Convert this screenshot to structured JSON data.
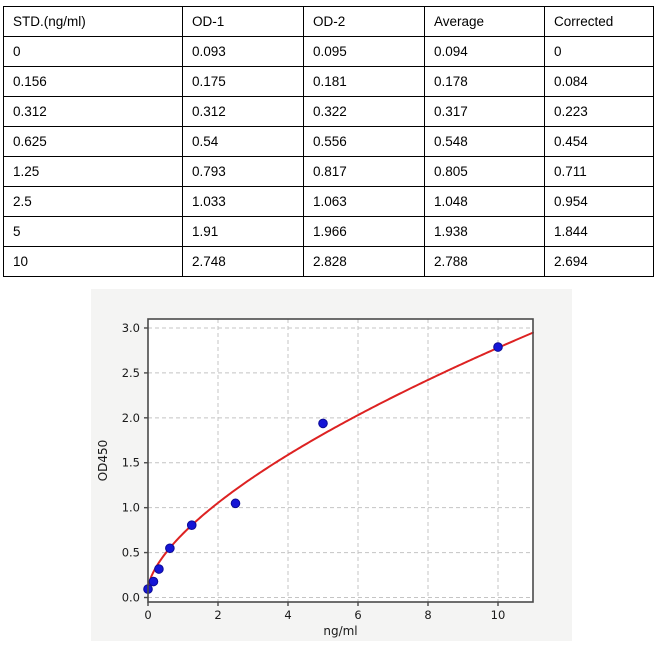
{
  "table": {
    "headers": [
      "STD.(ng/ml)",
      "OD-1",
      "OD-2",
      "Average",
      "Corrected"
    ],
    "rows": [
      [
        "0",
        "0.093",
        "0.095",
        "0.094",
        "0"
      ],
      [
        "0.156",
        "0.175",
        "0.181",
        "0.178",
        "0.084"
      ],
      [
        "0.312",
        "0.312",
        "0.322",
        "0.317",
        "0.223"
      ],
      [
        "0.625",
        "0.54",
        "0.556",
        "0.548",
        "0.454"
      ],
      [
        "1.25",
        "0.793",
        "0.817",
        "0.805",
        "0.711"
      ],
      [
        "2.5",
        "1.033",
        "1.063",
        "1.048",
        "0.954"
      ],
      [
        "5",
        "1.91",
        "1.966",
        "1.938",
        "1.844"
      ],
      [
        "10",
        "2.748",
        "2.828",
        "2.788",
        "2.694"
      ]
    ]
  },
  "chart_data": {
    "type": "scatter",
    "title": "",
    "xlabel": "ng/ml",
    "ylabel": "OD450",
    "xlim": [
      0,
      11
    ],
    "ylim": [
      -0.05,
      3.1
    ],
    "x_ticks": [
      0,
      2,
      4,
      6,
      8,
      10
    ],
    "x_tick_labels": [
      "0",
      "2",
      "4",
      "6",
      "8",
      "10"
    ],
    "y_ticks": [
      0,
      0.5,
      1,
      1.5,
      2,
      2.5,
      3
    ],
    "y_tick_labels": [
      "0.0",
      "0.5",
      "1.0",
      "1.5",
      "2.0",
      "2.5",
      "3.0"
    ],
    "grid": true,
    "legend": "none",
    "points_x": [
      0,
      0.156,
      0.312,
      0.625,
      1.25,
      2.5,
      5,
      10
    ],
    "points_y": [
      0.094,
      0.178,
      0.317,
      0.548,
      0.805,
      1.048,
      1.938,
      2.788
    ],
    "fit_curve": {
      "model": "power",
      "a": 0.611,
      "b": 0.642,
      "c": 0.1,
      "x_start": 0,
      "x_end": 11
    },
    "colors": {
      "point_fill": "#1515d6",
      "point_edge": "#0a0a96",
      "curve": "#dd2222",
      "grid": "#c4c4c4",
      "spine": "#4a4a4a",
      "panel_bg": "#f4f4f3",
      "plot_bg": "#ffffff",
      "text": "#1a1a1a"
    }
  }
}
